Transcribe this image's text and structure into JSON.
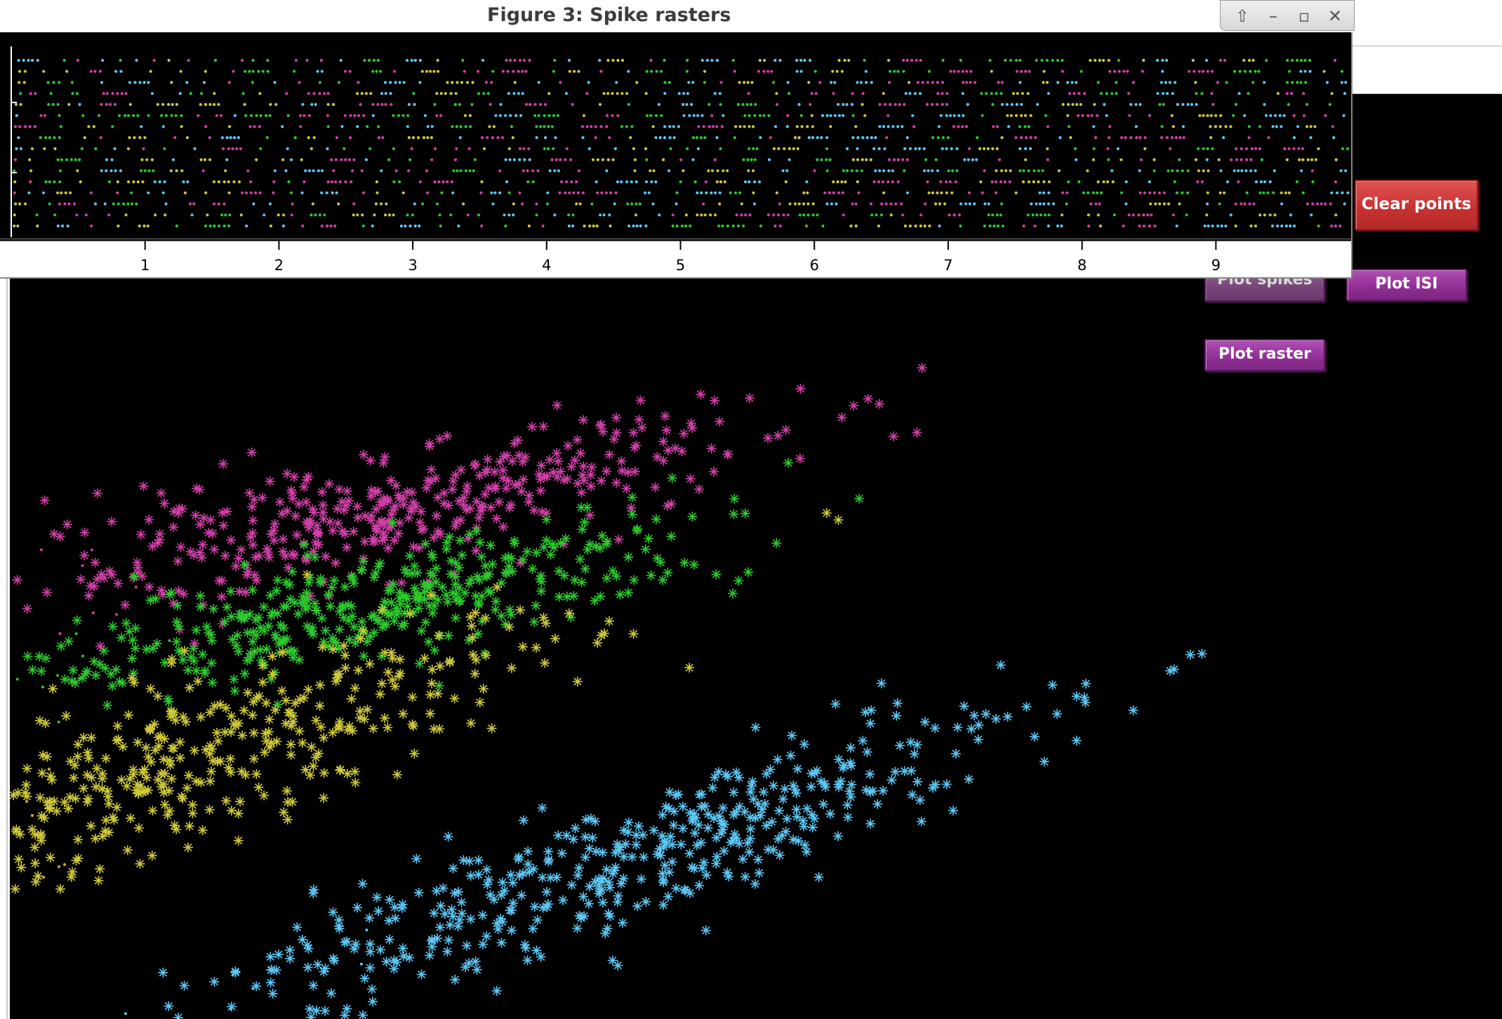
{
  "window": {
    "title": "Figure 3: Spike rasters",
    "controls": {
      "up_icon": "arrow-up-icon",
      "minimize_icon": "minimize-icon",
      "maximize_icon": "maximize-icon",
      "close_icon": "close-icon"
    }
  },
  "buttons": {
    "clear_points": "Clear points",
    "plot_spikes": "Plot spikes",
    "plot_isi": "Plot ISI",
    "plot_raster": "Plot raster"
  },
  "colors": {
    "magenta": "#d23fa8",
    "green": "#2ec82e",
    "yellow": "#cfc93a",
    "cyan": "#5cc8f5",
    "orange": "#c89a3a",
    "clear_button": "#c83232",
    "plot_button": "#8f2e93"
  },
  "chart_data": [
    {
      "type": "scatter",
      "title": "Figure 3: Spike rasters",
      "xlabel": "",
      "ylabel": "",
      "xlim": [
        0,
        10
      ],
      "x_ticks": [
        "1",
        "2",
        "3",
        "4",
        "5",
        "6",
        "7",
        "8",
        "9"
      ],
      "rows": 16,
      "marker": "dot",
      "series": [
        {
          "color": "#d23fa8"
        },
        {
          "color": "#2ec82e"
        },
        {
          "color": "#cfc93a"
        },
        {
          "color": "#5cc8f5"
        }
      ]
    },
    {
      "type": "scatter",
      "title": "",
      "marker": "asterisk",
      "series": [
        {
          "color": "#d23fa8",
          "center": [
            0.3,
            0.68
          ],
          "direction": [
            0.48,
            0.17
          ],
          "spread": 0.038,
          "count": 420
        },
        {
          "color": "#2ec82e",
          "center": [
            0.3,
            0.56
          ],
          "direction": [
            0.44,
            0.16
          ],
          "spread": 0.036,
          "count": 430
        },
        {
          "color": "#cfc93a",
          "center": [
            0.15,
            0.35
          ],
          "direction": [
            0.45,
            0.27
          ],
          "spread": 0.05,
          "count": 440
        },
        {
          "color": "#5cc8f5",
          "center": [
            0.5,
            0.21
          ],
          "direction": [
            0.55,
            0.33
          ],
          "spread": 0.04,
          "count": 480
        }
      ]
    }
  ]
}
